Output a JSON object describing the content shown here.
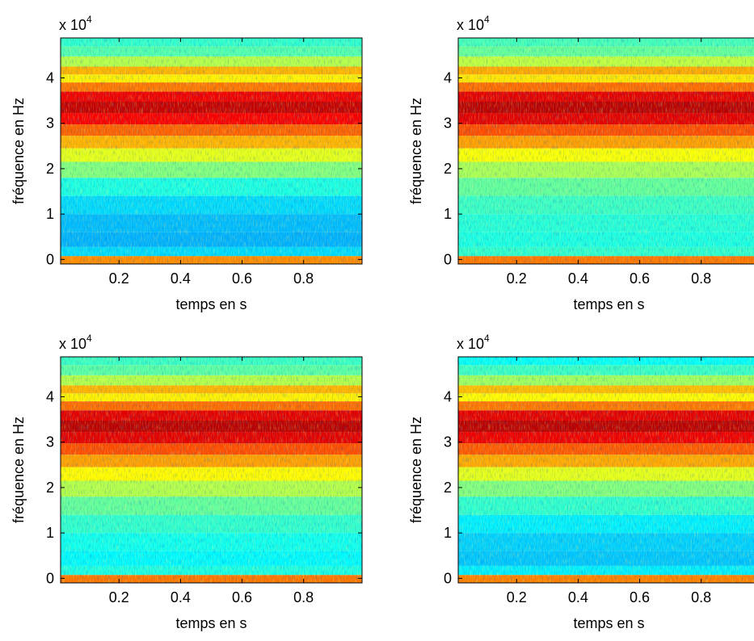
{
  "chart_data": [
    {
      "type": "spectrogram",
      "xlabel": "temps en s",
      "ylabel": "fréquence en Hz",
      "y_multiplier": {
        "base": "x 10",
        "exponent": "4"
      },
      "xlim": [
        0.01,
        0.99
      ],
      "ylim": [
        -1000,
        48800
      ],
      "xticks": [
        0.2,
        0.4,
        0.6,
        0.8
      ],
      "yticks": [
        0,
        {
          "value": 10000,
          "label": "1"
        },
        {
          "value": 20000,
          "label": "2"
        },
        {
          "value": 30000,
          "label": "3"
        },
        {
          "value": 40000,
          "label": "4"
        }
      ],
      "colormap": "jet",
      "frequencies": [
        0,
        1500,
        4000,
        8000,
        12000,
        16000,
        20000,
        23000,
        26000,
        28500,
        31000,
        33500,
        36000,
        38000,
        40000,
        41500,
        43500,
        46000,
        48000
      ],
      "levels": [
        0.74,
        0.34,
        0.3,
        0.31,
        0.34,
        0.4,
        0.5,
        0.6,
        0.7,
        0.78,
        0.88,
        0.93,
        0.89,
        0.76,
        0.64,
        0.7,
        0.55,
        0.45,
        0.42
      ]
    },
    {
      "type": "spectrogram",
      "xlabel": "temps en s",
      "ylabel": "fréquence en Hz",
      "y_multiplier": {
        "base": "x 10",
        "exponent": "4"
      },
      "xlim": [
        0.01,
        0.99
      ],
      "ylim": [
        -1000,
        48800
      ],
      "xticks": [
        0.2,
        0.4,
        0.6,
        0.8
      ],
      "yticks": [
        0,
        {
          "value": 10000,
          "label": "1"
        },
        {
          "value": 20000,
          "label": "2"
        },
        {
          "value": 30000,
          "label": "3"
        },
        {
          "value": 40000,
          "label": "4"
        }
      ],
      "colormap": "jet",
      "frequencies": [
        0,
        1500,
        4000,
        8000,
        12000,
        16000,
        20000,
        23000,
        26000,
        28500,
        31000,
        33500,
        36000,
        38000,
        40000,
        41500,
        43500,
        46000,
        48000
      ],
      "levels": [
        0.76,
        0.42,
        0.4,
        0.41,
        0.43,
        0.47,
        0.54,
        0.62,
        0.72,
        0.8,
        0.9,
        0.94,
        0.9,
        0.77,
        0.65,
        0.71,
        0.56,
        0.47,
        0.44
      ]
    },
    {
      "type": "spectrogram",
      "xlabel": "temps en s",
      "ylabel": "fréquence en Hz",
      "y_multiplier": {
        "base": "x 10",
        "exponent": "4"
      },
      "xlim": [
        0.01,
        0.99
      ],
      "ylim": [
        -1000,
        48800
      ],
      "xticks": [
        0.2,
        0.4,
        0.6,
        0.8
      ],
      "yticks": [
        0,
        {
          "value": 10000,
          "label": "1"
        },
        {
          "value": 20000,
          "label": "2"
        },
        {
          "value": 30000,
          "label": "3"
        },
        {
          "value": 40000,
          "label": "4"
        }
      ],
      "colormap": "jet",
      "frequencies": [
        0,
        1500,
        4000,
        8000,
        12000,
        16000,
        20000,
        23000,
        26000,
        28500,
        31000,
        33500,
        36000,
        38000,
        40000,
        41500,
        43500,
        46000,
        48000
      ],
      "levels": [
        0.76,
        0.4,
        0.37,
        0.39,
        0.42,
        0.47,
        0.55,
        0.63,
        0.72,
        0.8,
        0.9,
        0.94,
        0.9,
        0.77,
        0.64,
        0.7,
        0.55,
        0.46,
        0.43
      ]
    },
    {
      "type": "spectrogram",
      "xlabel": "temps en s",
      "ylabel": "fréquence en Hz",
      "y_multiplier": {
        "base": "x 10",
        "exponent": "4"
      },
      "xlim": [
        0.01,
        0.99
      ],
      "ylim": [
        -1000,
        48800
      ],
      "xticks": [
        0.2,
        0.4,
        0.6,
        0.8
      ],
      "yticks": [
        0,
        {
          "value": 10000,
          "label": "1"
        },
        {
          "value": 20000,
          "label": "2"
        },
        {
          "value": 30000,
          "label": "3"
        },
        {
          "value": 40000,
          "label": "4"
        }
      ],
      "colormap": "jet",
      "frequencies": [
        0,
        1500,
        4000,
        8000,
        12000,
        16000,
        20000,
        23000,
        26000,
        28500,
        31000,
        33500,
        36000,
        38000,
        40000,
        41500,
        43500,
        46000,
        48000
      ],
      "levels": [
        0.75,
        0.36,
        0.32,
        0.33,
        0.36,
        0.42,
        0.5,
        0.6,
        0.71,
        0.79,
        0.89,
        0.94,
        0.9,
        0.76,
        0.63,
        0.69,
        0.53,
        0.43,
        0.38
      ]
    }
  ]
}
